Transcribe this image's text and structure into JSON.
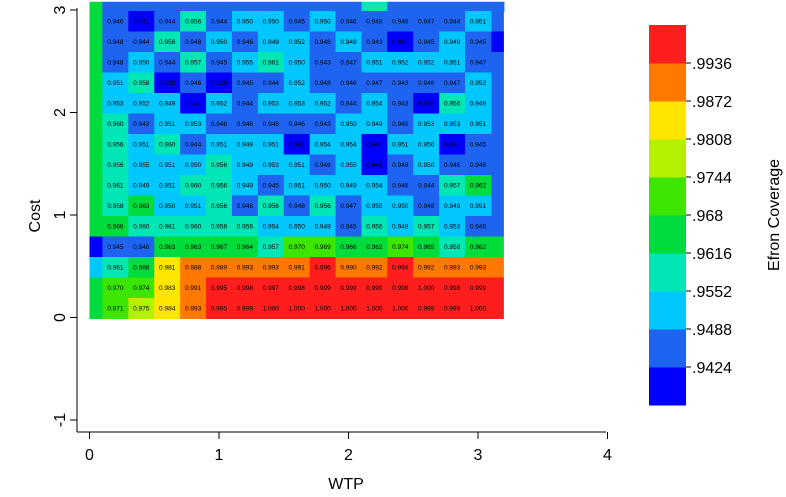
{
  "chart_data": {
    "type": "heatmap",
    "xlabel": "WTP",
    "ylabel": "Cost",
    "colorbar_label": "Efron Coverage",
    "xlim": [
      0,
      4
    ],
    "ylim": [
      -1,
      3
    ],
    "x_ticks": [
      "0",
      "1",
      "2",
      "3",
      "4"
    ],
    "y_ticks": [
      "-1",
      "0",
      "1",
      "2",
      "3"
    ],
    "colorbar_ticks": [
      ".9424",
      ".9488",
      ".9552",
      ".9616",
      ".968",
      ".9744",
      ".9808",
      ".9872",
      ".9936"
    ],
    "colorbar_min": 0.936,
    "colorbar_max": 1.0,
    "colors": [
      "#0000ff",
      "#1e64f0",
      "#00c8ff",
      "#00e6b4",
      "#00dc3c",
      "#3ce600",
      "#b4f000",
      "#ffe600",
      "#ff7800",
      "#ff1e1e"
    ],
    "rows": [
      {
        "values": [
          0.946,
          0.941,
          0.944,
          0.956,
          0.944,
          0.95,
          0.95,
          0.945,
          0.95,
          0.946,
          0.948,
          0.946,
          0.947,
          0.944,
          0.951
        ],
        "labels": [
          "0.946",
          "0.941",
          "0.944",
          "0.956",
          "0.944",
          "0.950",
          "0.950",
          "0.945",
          "0.950",
          "0.946",
          "0.948",
          "0.946",
          "0.947",
          "0.944",
          "0.951"
        ]
      },
      {
        "values": [
          0.948,
          0.944,
          0.956,
          0.948,
          0.95,
          0.946,
          0.949,
          0.952,
          0.948,
          0.949,
          0.943,
          0.94,
          0.945,
          0.949,
          0.945
        ],
        "labels": [
          "0.948",
          "0.944",
          "0.956",
          "0.948",
          "0.950",
          "0.946",
          "0.949",
          "0.952",
          "0.948",
          "0.949",
          "0.943",
          "0.940",
          "0.945",
          "0.949",
          "0.945"
        ]
      },
      {
        "values": [
          0.948,
          0.95,
          0.944,
          0.957,
          0.945,
          0.955,
          0.961,
          0.95,
          0.943,
          0.947,
          0.951,
          0.952,
          0.952,
          0.951,
          0.947
        ],
        "labels": [
          "0.948",
          "0.950",
          "0.944",
          "0.957",
          "0.945",
          "0.955",
          "0.961",
          "0.950",
          "0.943",
          "0.947",
          "0.951",
          "0.952",
          "0.952",
          "0.951",
          "0.947"
        ]
      },
      {
        "values": [
          0.951,
          0.958,
          0.939,
          0.946,
          0.939,
          0.945,
          0.944,
          0.952,
          0.948,
          0.946,
          0.947,
          0.943,
          0.946,
          0.947,
          0.952
        ],
        "labels": [
          "0.951",
          "0.958",
          "0.939",
          "0.946",
          "0.939",
          "0.945",
          "0.944",
          "0.952",
          "0.948",
          "0.946",
          "0.947",
          "0.943",
          "0.946",
          "0.947",
          "0.952"
        ]
      },
      {
        "values": [
          0.953,
          0.952,
          0.949,
          0.941,
          0.952,
          0.944,
          0.953,
          0.953,
          0.952,
          0.944,
          0.954,
          0.943,
          0.938,
          0.956,
          0.949
        ],
        "labels": [
          "0.953",
          "0.952",
          "0.949",
          "0.941",
          "0.952",
          "0.944",
          "0.953",
          "0.953",
          "0.952",
          "0.944",
          "0.954",
          "0.943",
          "0.938",
          "0.956",
          "0.949"
        ]
      },
      {
        "values": [
          0.96,
          0.943,
          0.951,
          0.953,
          0.948,
          0.946,
          0.948,
          0.946,
          0.943,
          0.95,
          0.949,
          0.945,
          0.953,
          0.953,
          0.951
        ],
        "labels": [
          "0.960",
          "0.943",
          "0.951",
          "0.953",
          "0.948",
          "0.946",
          "0.948",
          "0.946",
          "0.943",
          "0.950",
          "0.949",
          "0.945",
          "0.953",
          "0.953",
          "0.951"
        ]
      },
      {
        "values": [
          0.956,
          0.951,
          0.96,
          0.944,
          0.951,
          0.949,
          0.951,
          0.941,
          0.954,
          0.954,
          0.94,
          0.951,
          0.95,
          0.94,
          0.945
        ],
        "labels": [
          "0.956",
          "0.951",
          "0.960",
          "0.944",
          "0.951",
          "0.949",
          "0.951",
          "0.941",
          "0.954",
          "0.954",
          "0.940",
          "0.951",
          "0.950",
          "0.940",
          "0.945"
        ]
      },
      {
        "values": [
          0.956,
          0.955,
          0.951,
          0.95,
          0.956,
          0.949,
          0.953,
          0.951,
          0.948,
          0.955,
          0.941,
          0.948,
          0.95,
          0.946,
          0.948
        ],
        "labels": [
          "0.956",
          "0.955",
          "0.951",
          "0.950",
          "0.956",
          "0.949",
          "0.953",
          "0.951",
          "0.948",
          "0.955",
          "0.941",
          "0.948",
          "0.950",
          "0.946",
          "0.948"
        ]
      },
      {
        "values": [
          0.961,
          0.949,
          0.951,
          0.96,
          0.956,
          0.949,
          0.945,
          0.951,
          0.95,
          0.949,
          0.954,
          0.946,
          0.944,
          0.957,
          0.962
        ],
        "labels": [
          "0.961",
          "0.949",
          "0.951",
          "0.960",
          "0.956",
          "0.949",
          "0.945",
          "0.951",
          "0.950",
          "0.949",
          "0.954",
          "0.946",
          "0.944",
          "0.957",
          "0.962"
        ]
      },
      {
        "values": [
          0.958,
          0.963,
          0.95,
          0.951,
          0.956,
          0.948,
          0.956,
          0.948,
          0.956,
          0.947,
          0.95,
          0.95,
          0.948,
          0.949,
          0.951
        ],
        "labels": [
          "0.958",
          "0.963",
          "0.950",
          "0.951",
          "0.956",
          "0.948",
          "0.956",
          "0.948",
          "0.956",
          "0.947",
          "0.950",
          "0.950",
          "0.948",
          "0.949",
          "0.951"
        ]
      },
      {
        "values": [
          0.966,
          0.96,
          0.961,
          0.96,
          0.958,
          0.956,
          0.954,
          0.95,
          0.949,
          0.945,
          0.956,
          0.949,
          0.957,
          0.953,
          0.945
        ],
        "labels": [
          "0.966",
          "0.960",
          "0.961",
          "0.960",
          "0.958",
          "0.956",
          "0.954",
          "0.950",
          "0.949",
          "0.945",
          "0.956",
          "0.949",
          "0.957",
          "0.953",
          "0.945"
        ]
      },
      {
        "values": [
          0.945,
          0.946,
          0.963,
          0.963,
          0.967,
          0.964,
          0.957,
          0.97,
          0.969,
          0.966,
          0.962,
          0.974,
          0.965,
          0.958,
          0.962
        ],
        "labels": [
          "0.945",
          "0.946",
          "0.963",
          "0.963",
          "0.967",
          "0.964",
          "0.957",
          "0.970",
          "0.969",
          "0.966",
          "0.962",
          "0.974",
          "0.965",
          "0.958",
          "0.962"
        ]
      },
      {
        "values": [
          0.961,
          0.968,
          0.981,
          0.988,
          0.989,
          0.993,
          0.993,
          0.991,
          0.996,
          0.99,
          0.992,
          0.994,
          0.992,
          0.993,
          0.993
        ],
        "labels": [
          "0.961",
          "0.968",
          "0.981",
          "0.988",
          "0.989",
          "0.993",
          "0.993",
          "0.991",
          "0.996",
          "0.990",
          "0.992",
          "0.994",
          "0.992",
          "0.993",
          "0.993"
        ]
      },
      {
        "values": [
          0.97,
          0.974,
          0.983,
          0.991,
          0.995,
          0.998,
          0.997,
          0.998,
          0.999,
          0.999,
          0.999,
          0.998,
          1.0,
          0.998,
          0.999
        ],
        "labels": [
          "0.970",
          "0.974",
          "0.983",
          "0.991",
          "0.995",
          "0.998",
          "0.997",
          "0.998",
          "0.999",
          "0.999",
          "0.999",
          "0.998",
          "1.000",
          "0.998",
          "0.999"
        ]
      },
      {
        "values": [
          0.971,
          0.975,
          0.984,
          0.993,
          0.995,
          0.999,
          1.0,
          1.0,
          1.0,
          1.0,
          1.0,
          1.0,
          0.998,
          0.999,
          1.0
        ],
        "labels": [
          "0.971",
          "0.975",
          "0.984",
          "0.993",
          "0.995",
          "0.999",
          "1.000",
          "1.000",
          "1.000",
          "1.000",
          "1.000",
          "1.000",
          "0.998",
          "0.999",
          "1.000"
        ]
      }
    ],
    "left_edge_column_values": [
      0.968,
      0.968,
      0.968,
      0.968,
      0.968,
      0.968,
      0.968,
      0.968,
      0.968,
      0.968,
      0.968,
      0.94,
      0.955,
      0.968,
      0.968
    ],
    "right_edge_column_values": [
      0.948,
      0.94,
      0.948,
      0.948,
      0.948,
      0.948,
      0.948,
      0.948,
      0.948,
      0.948,
      0.948,
      0.965,
      0.988,
      0.999,
      0.999
    ],
    "top_edge_row_values": [
      0.968,
      0.948,
      0.948,
      0.948,
      0.948,
      0.948,
      0.948,
      0.948,
      0.948,
      0.948,
      0.948,
      0.958,
      0.948,
      0.948,
      0.948,
      0.948,
      0.948
    ]
  }
}
